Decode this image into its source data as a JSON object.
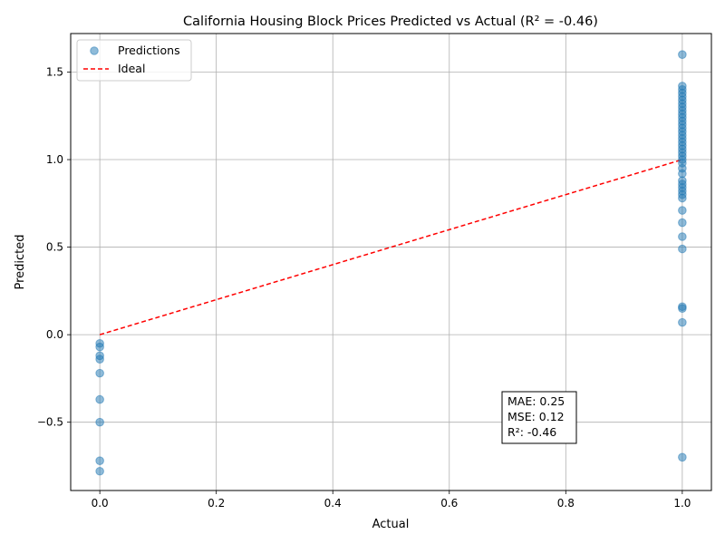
{
  "chart_data": {
    "type": "scatter",
    "title": "California Housing Block Prices Predicted vs Actual (R² = -0.46)",
    "xlabel": "Actual",
    "ylabel": "Predicted",
    "xlim": [
      -0.05,
      1.05
    ],
    "ylim": [
      -0.89,
      1.72
    ],
    "x_ticks": [
      0.0,
      0.2,
      0.4,
      0.6,
      0.8,
      1.0
    ],
    "x_tick_labels": [
      "0.0",
      "0.2",
      "0.4",
      "0.6",
      "0.8",
      "1.0"
    ],
    "y_ticks": [
      -0.5,
      0.0,
      0.5,
      1.0,
      1.5
    ],
    "y_tick_labels": [
      "−0.5",
      "0.0",
      "0.5",
      "1.0",
      "1.5"
    ],
    "grid": true,
    "legend": {
      "placement": "top-left",
      "entries": [
        "Predictions",
        "Ideal"
      ]
    },
    "series": [
      {
        "name": "Predictions",
        "kind": "scatter",
        "color": "#1f77b4",
        "points": [
          {
            "x": 0,
            "y": -0.05
          },
          {
            "x": 0,
            "y": -0.07
          },
          {
            "x": 0,
            "y": -0.12
          },
          {
            "x": 0,
            "y": -0.14
          },
          {
            "x": 0,
            "y": -0.22
          },
          {
            "x": 0,
            "y": -0.37
          },
          {
            "x": 0,
            "y": -0.5
          },
          {
            "x": 0,
            "y": -0.72
          },
          {
            "x": 0,
            "y": -0.78
          },
          {
            "x": 1,
            "y": 1.6
          },
          {
            "x": 1,
            "y": 1.42
          },
          {
            "x": 1,
            "y": 1.4
          },
          {
            "x": 1,
            "y": 1.38
          },
          {
            "x": 1,
            "y": 1.36
          },
          {
            "x": 1,
            "y": 1.34
          },
          {
            "x": 1,
            "y": 1.32
          },
          {
            "x": 1,
            "y": 1.3
          },
          {
            "x": 1,
            "y": 1.28
          },
          {
            "x": 1,
            "y": 1.26
          },
          {
            "x": 1,
            "y": 1.24
          },
          {
            "x": 1,
            "y": 1.22
          },
          {
            "x": 1,
            "y": 1.2
          },
          {
            "x": 1,
            "y": 1.18
          },
          {
            "x": 1,
            "y": 1.16
          },
          {
            "x": 1,
            "y": 1.14
          },
          {
            "x": 1,
            "y": 1.12
          },
          {
            "x": 1,
            "y": 1.1
          },
          {
            "x": 1,
            "y": 1.08
          },
          {
            "x": 1,
            "y": 1.06
          },
          {
            "x": 1,
            "y": 1.04
          },
          {
            "x": 1,
            "y": 1.02
          },
          {
            "x": 1,
            "y": 1.0
          },
          {
            "x": 1,
            "y": 0.98
          },
          {
            "x": 1,
            "y": 0.95
          },
          {
            "x": 1,
            "y": 0.92
          },
          {
            "x": 1,
            "y": 0.88
          },
          {
            "x": 1,
            "y": 0.86
          },
          {
            "x": 1,
            "y": 0.84
          },
          {
            "x": 1,
            "y": 0.82
          },
          {
            "x": 1,
            "y": 0.8
          },
          {
            "x": 1,
            "y": 0.78
          },
          {
            "x": 1,
            "y": 0.71
          },
          {
            "x": 1,
            "y": 0.64
          },
          {
            "x": 1,
            "y": 0.56
          },
          {
            "x": 1,
            "y": 0.49
          },
          {
            "x": 1,
            "y": 0.16
          },
          {
            "x": 1,
            "y": 0.15
          },
          {
            "x": 1,
            "y": 0.07
          },
          {
            "x": 1,
            "y": -0.7
          }
        ]
      },
      {
        "name": "Ideal",
        "kind": "line",
        "style": "dashed",
        "color": "#ff0000",
        "points": [
          {
            "x": 0,
            "y": 0
          },
          {
            "x": 1,
            "y": 1
          }
        ]
      }
    ],
    "annotation": {
      "lines": [
        "MAE: 0.25",
        "MSE: 0.12",
        "R²: -0.46"
      ]
    }
  }
}
